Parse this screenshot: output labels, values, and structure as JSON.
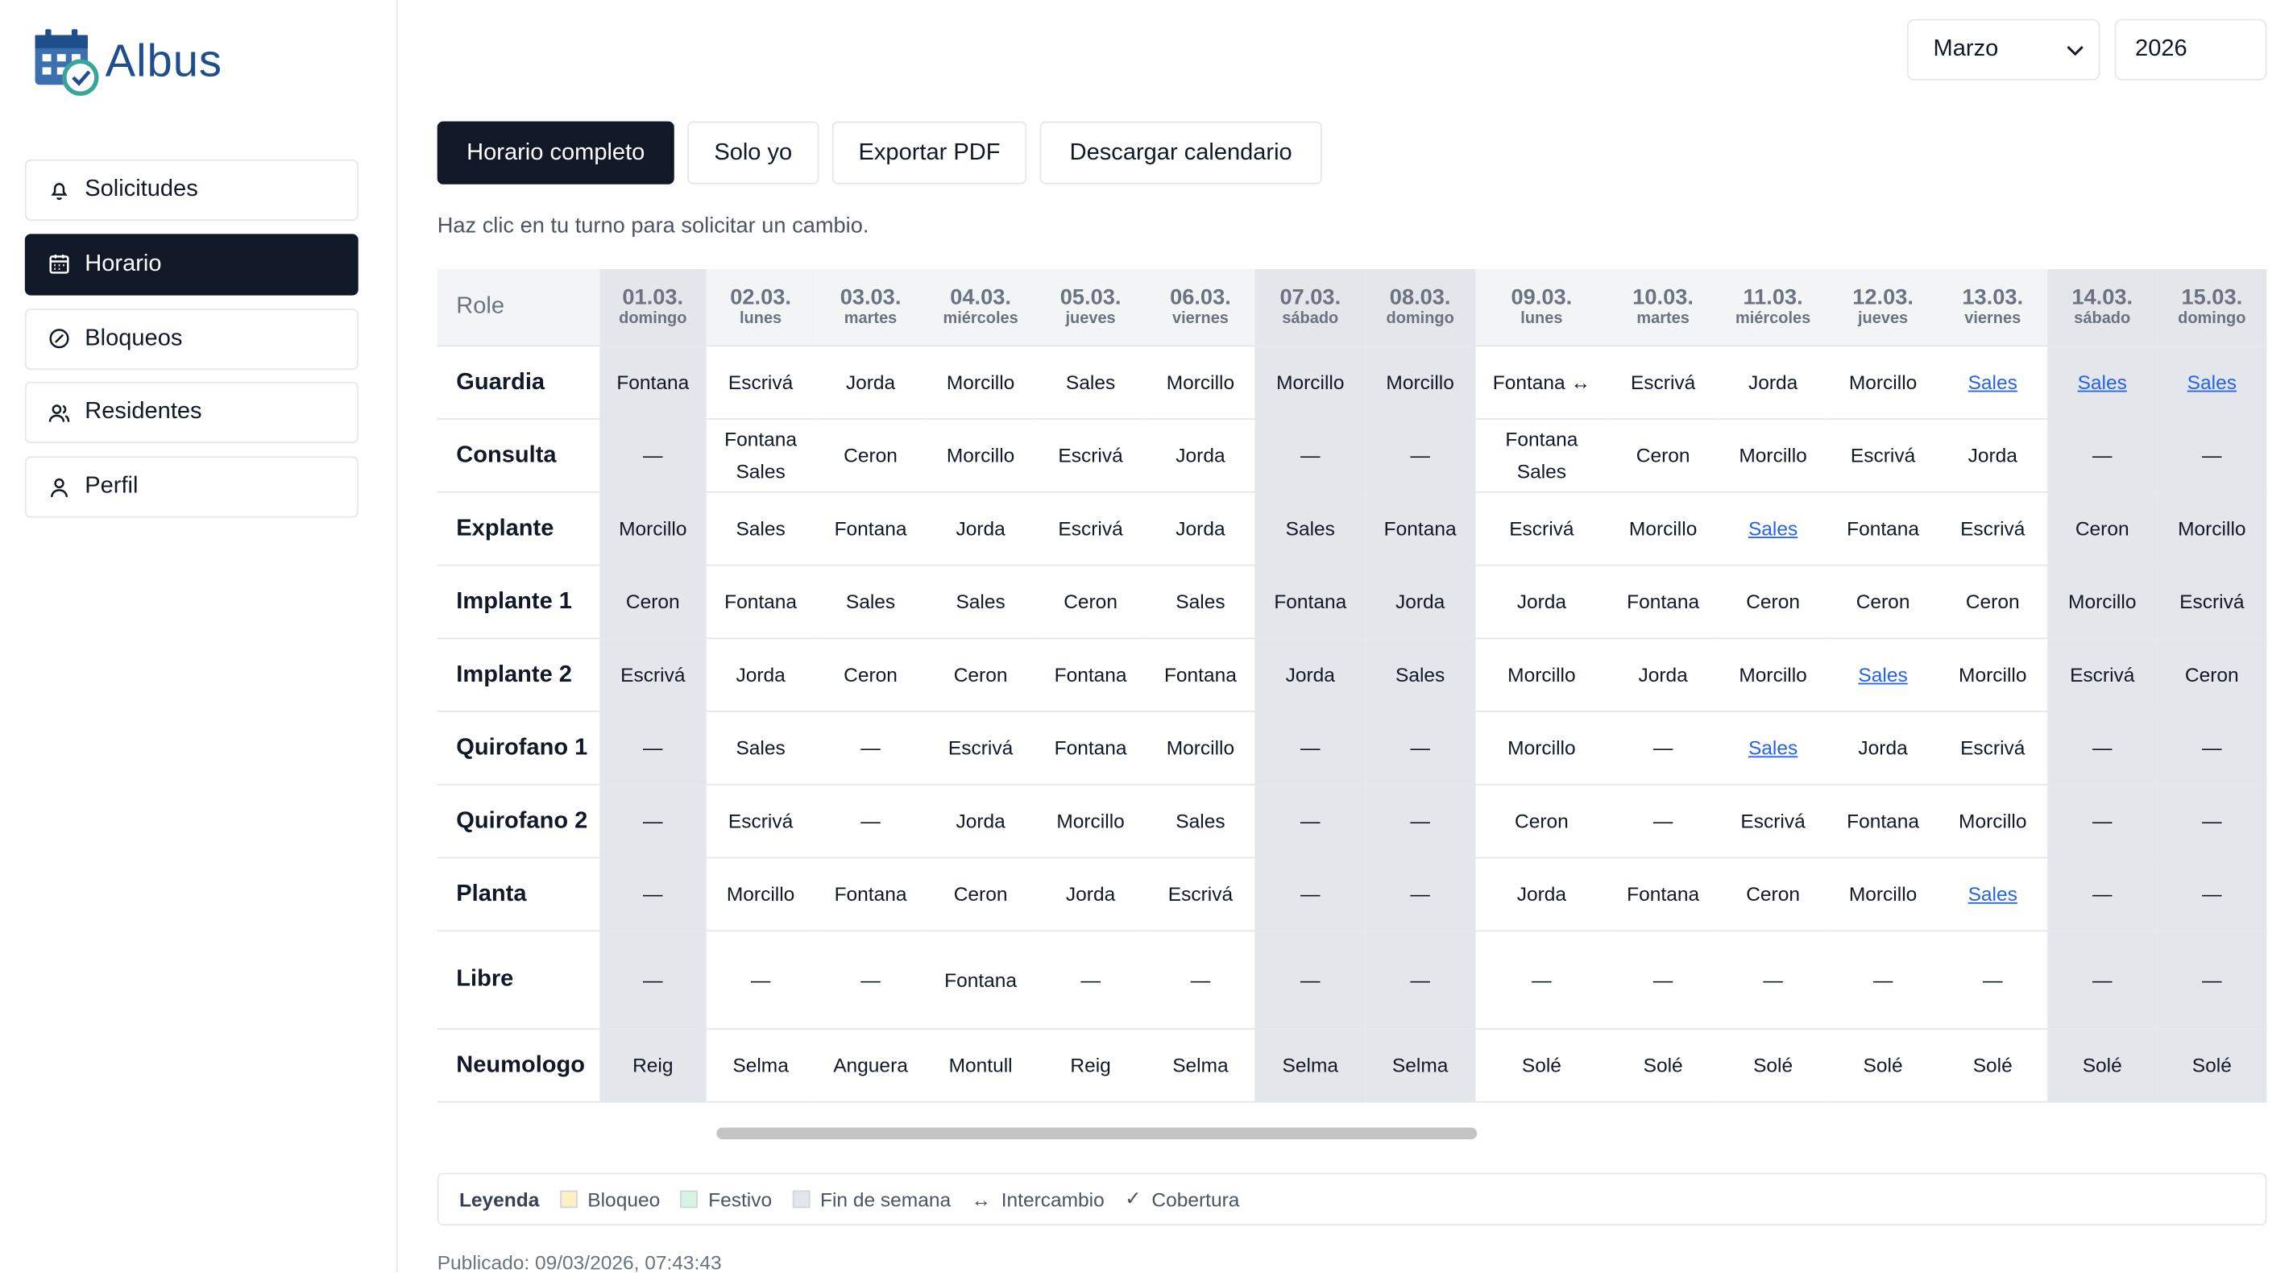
{
  "app": {
    "name": "Albus"
  },
  "nav": {
    "items": [
      {
        "label": "Solicitudes",
        "icon": "bell"
      },
      {
        "label": "Horario",
        "icon": "calendar",
        "active": true
      },
      {
        "label": "Bloqueos",
        "icon": "ban"
      },
      {
        "label": "Residentes",
        "icon": "users"
      },
      {
        "label": "Perfil",
        "icon": "user"
      }
    ]
  },
  "header": {
    "month": "Marzo",
    "year": "2026"
  },
  "buttons": [
    {
      "label": "Horario completo",
      "active": true
    },
    {
      "label": "Solo yo"
    },
    {
      "label": "Exportar PDF"
    },
    {
      "label": "Descargar calendario"
    }
  ],
  "hint": "Haz clic en tu turno para solicitar un cambio.",
  "table": {
    "corner": "Role",
    "columns": [
      {
        "date": "01.03.",
        "weekday": "domingo",
        "weekend": true
      },
      {
        "date": "02.03.",
        "weekday": "lunes"
      },
      {
        "date": "03.03.",
        "weekday": "martes"
      },
      {
        "date": "04.03.",
        "weekday": "miércoles"
      },
      {
        "date": "05.03.",
        "weekday": "jueves"
      },
      {
        "date": "06.03.",
        "weekday": "viernes"
      },
      {
        "date": "07.03.",
        "weekday": "sábado",
        "weekend": true
      },
      {
        "date": "08.03.",
        "weekday": "domingo",
        "weekend": true
      },
      {
        "date": "09.03.",
        "weekday": "lunes"
      },
      {
        "date": "10.03.",
        "weekday": "martes"
      },
      {
        "date": "11.03.",
        "weekday": "miércoles"
      },
      {
        "date": "12.03.",
        "weekday": "jueves"
      },
      {
        "date": "13.03.",
        "weekday": "viernes"
      },
      {
        "date": "14.03.",
        "weekday": "sábado",
        "weekend": true
      },
      {
        "date": "15.03.",
        "weekday": "domingo",
        "weekend": true
      }
    ],
    "rows": [
      {
        "role": "Guardia",
        "cells": [
          "Fontana",
          "Escrivá",
          "Jorda",
          "Morcillo",
          "Sales",
          "Morcillo",
          "Morcillo",
          "Morcillo",
          "Fontana ↔",
          "Escrivá",
          "Jorda",
          "Morcillo",
          {
            "text": "Sales",
            "link": true
          },
          {
            "text": "Sales",
            "link": true
          },
          {
            "text": "Sales",
            "link": true
          }
        ]
      },
      {
        "role": "Consulta",
        "cells": [
          "—",
          [
            "Fontana",
            "Sales"
          ],
          "Ceron",
          "Morcillo",
          "Escrivá",
          "Jorda",
          "—",
          "—",
          [
            "Fontana",
            "Sales"
          ],
          "Ceron",
          "Morcillo",
          "Escrivá",
          "Jorda",
          "—",
          "—"
        ]
      },
      {
        "role": "Explante",
        "cells": [
          "Morcillo",
          "Sales",
          "Fontana",
          "Jorda",
          "Escrivá",
          "Jorda",
          "Sales",
          "Fontana",
          "Escrivá",
          "Morcillo",
          {
            "text": "Sales",
            "link": true
          },
          "Fontana",
          "Escrivá",
          "Ceron",
          "Morcillo"
        ]
      },
      {
        "role": "Implante 1",
        "cells": [
          "Ceron",
          "Fontana",
          "Sales",
          "Sales",
          "Ceron",
          "Sales",
          "Fontana",
          "Jorda",
          "Jorda",
          "Fontana",
          "Ceron",
          "Ceron",
          "Ceron",
          "Morcillo",
          "Escrivá"
        ]
      },
      {
        "role": "Implante 2",
        "cells": [
          "Escrivá",
          "Jorda",
          "Ceron",
          "Ceron",
          "Fontana",
          "Fontana",
          "Jorda",
          "Sales",
          "Morcillo",
          "Jorda",
          "Morcillo",
          {
            "text": "Sales",
            "link": true
          },
          "Morcillo",
          "Escrivá",
          "Ceron"
        ]
      },
      {
        "role": "Quirofano 1",
        "cells": [
          "—",
          "Sales",
          "—",
          "Escrivá",
          "Fontana",
          "Morcillo",
          "—",
          "—",
          "Morcillo",
          "—",
          {
            "text": "Sales",
            "link": true
          },
          "Jorda",
          "Escrivá",
          "—",
          "—"
        ]
      },
      {
        "role": "Quirofano 2",
        "cells": [
          "—",
          "Escrivá",
          "—",
          "Jorda",
          "Morcillo",
          "Sales",
          "—",
          "—",
          "Ceron",
          "—",
          "Escrivá",
          "Fontana",
          "Morcillo",
          "—",
          "—"
        ]
      },
      {
        "role": "Planta",
        "cells": [
          "—",
          "Morcillo",
          "Fontana",
          "Ceron",
          "Jorda",
          "Escrivá",
          "—",
          "—",
          "Jorda",
          "Fontana",
          "Ceron",
          "Morcillo",
          {
            "text": "Sales",
            "link": true
          },
          "—",
          "—"
        ]
      },
      {
        "role": "Libre",
        "tall": true,
        "cells": [
          "—",
          "—",
          "—",
          "Fontana",
          "—",
          "—",
          "—",
          "—",
          "—",
          "—",
          "—",
          "—",
          "—",
          "—",
          "—"
        ]
      },
      {
        "role": "Neumologo",
        "cells": [
          "Reig",
          "Selma",
          "Anguera",
          "Montull",
          "Reig",
          "Selma",
          "Selma",
          "Selma",
          "Solé",
          "Solé",
          "Solé",
          "Solé",
          "Solé",
          "Solé",
          "Solé"
        ]
      }
    ]
  },
  "legend": {
    "title": "Leyenda",
    "items": [
      {
        "label": "Bloqueo",
        "color": "#fdf0c4"
      },
      {
        "label": "Festivo",
        "color": "#d6f5e0"
      },
      {
        "label": "Fin de semana",
        "color": "#e3e6eb"
      },
      {
        "label": "Intercambio",
        "symbol": "↔"
      },
      {
        "label": "Cobertura",
        "symbol": "✓"
      }
    ]
  },
  "published": "Publicado: 09/03/2026, 07:43:43"
}
